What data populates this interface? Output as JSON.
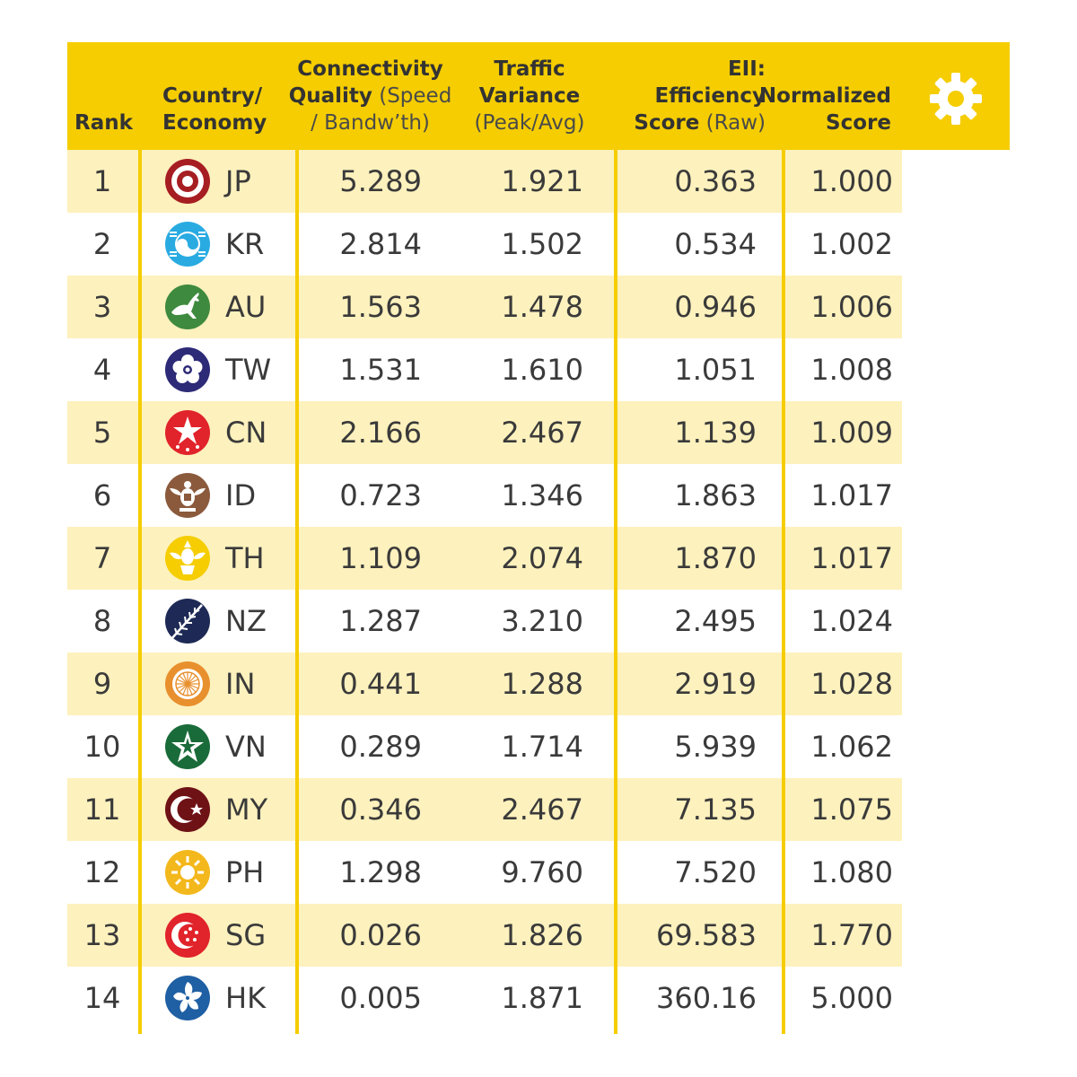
{
  "chart_data": {
    "type": "table",
    "columns": [
      {
        "key": "rank",
        "bold": "Rank",
        "light": ""
      },
      {
        "key": "country",
        "bold": "Country/ Economy",
        "light": ""
      },
      {
        "key": "connectivity",
        "bold": "Connectivity Quality",
        "light": "(Speed / Bandw’th)"
      },
      {
        "key": "traffic",
        "bold": "Traffic Variance",
        "light": "(Peak/Avg)"
      },
      {
        "key": "eii",
        "bold": "EII: Efficiency Score",
        "light": "(Raw)"
      },
      {
        "key": "normalized",
        "bold": "Normalized Score",
        "light": ""
      }
    ],
    "rows": [
      {
        "rank": "1",
        "country": "JP",
        "connectivity": "5.289",
        "traffic": "1.921",
        "eii": "0.363",
        "normalized": "1.000",
        "flag_icon": "japan-emblem-icon"
      },
      {
        "rank": "2",
        "country": "KR",
        "connectivity": "2.814",
        "traffic": "1.502",
        "eii": "0.534",
        "normalized": "1.002",
        "flag_icon": "korea-taegeuk-icon"
      },
      {
        "rank": "3",
        "country": "AU",
        "connectivity": "1.563",
        "traffic": "1.478",
        "eii": "0.946",
        "normalized": "1.006",
        "flag_icon": "kangaroo-icon"
      },
      {
        "rank": "4",
        "country": "TW",
        "connectivity": "1.531",
        "traffic": "1.610",
        "eii": "1.051",
        "normalized": "1.008",
        "flag_icon": "plum-blossom-icon"
      },
      {
        "rank": "5",
        "country": "CN",
        "connectivity": "2.166",
        "traffic": "2.467",
        "eii": "1.139",
        "normalized": "1.009",
        "flag_icon": "china-stars-icon"
      },
      {
        "rank": "6",
        "country": "ID",
        "connectivity": "0.723",
        "traffic": "1.346",
        "eii": "1.863",
        "normalized": "1.017",
        "flag_icon": "garuda-icon"
      },
      {
        "rank": "7",
        "country": "TH",
        "connectivity": "1.109",
        "traffic": "2.074",
        "eii": "1.870",
        "normalized": "1.017",
        "flag_icon": "thai-garuda-icon"
      },
      {
        "rank": "8",
        "country": "NZ",
        "connectivity": "1.287",
        "traffic": "3.210",
        "eii": "2.495",
        "normalized": "1.024",
        "flag_icon": "silver-fern-icon"
      },
      {
        "rank": "9",
        "country": "IN",
        "connectivity": "0.441",
        "traffic": "1.288",
        "eii": "2.919",
        "normalized": "1.028",
        "flag_icon": "ashoka-chakra-icon"
      },
      {
        "rank": "10",
        "country": "VN",
        "connectivity": "0.289",
        "traffic": "1.714",
        "eii": "5.939",
        "normalized": "1.062",
        "flag_icon": "vietnam-star-icon"
      },
      {
        "rank": "11",
        "country": "MY",
        "connectivity": "0.346",
        "traffic": "2.467",
        "eii": "7.135",
        "normalized": "1.075",
        "flag_icon": "crescent-star-icon"
      },
      {
        "rank": "12",
        "country": "PH",
        "connectivity": "1.298",
        "traffic": "9.760",
        "eii": "7.520",
        "normalized": "1.080",
        "flag_icon": "philippine-sun-icon"
      },
      {
        "rank": "13",
        "country": "SG",
        "connectivity": "0.026",
        "traffic": "1.826",
        "eii": "69.583",
        "normalized": "1.770",
        "flag_icon": "singapore-crescent-icon"
      },
      {
        "rank": "14",
        "country": "HK",
        "connectivity": "0.005",
        "traffic": "1.871",
        "eii": "360.16",
        "normalized": "5.000",
        "flag_icon": "bauhinia-icon"
      }
    ],
    "colors": {
      "header_background": "#f5cd00",
      "stripe_background": "#fdf1bd",
      "divider": "#f5cd00",
      "text": "#333333"
    }
  },
  "header_icon": "gear-icon"
}
